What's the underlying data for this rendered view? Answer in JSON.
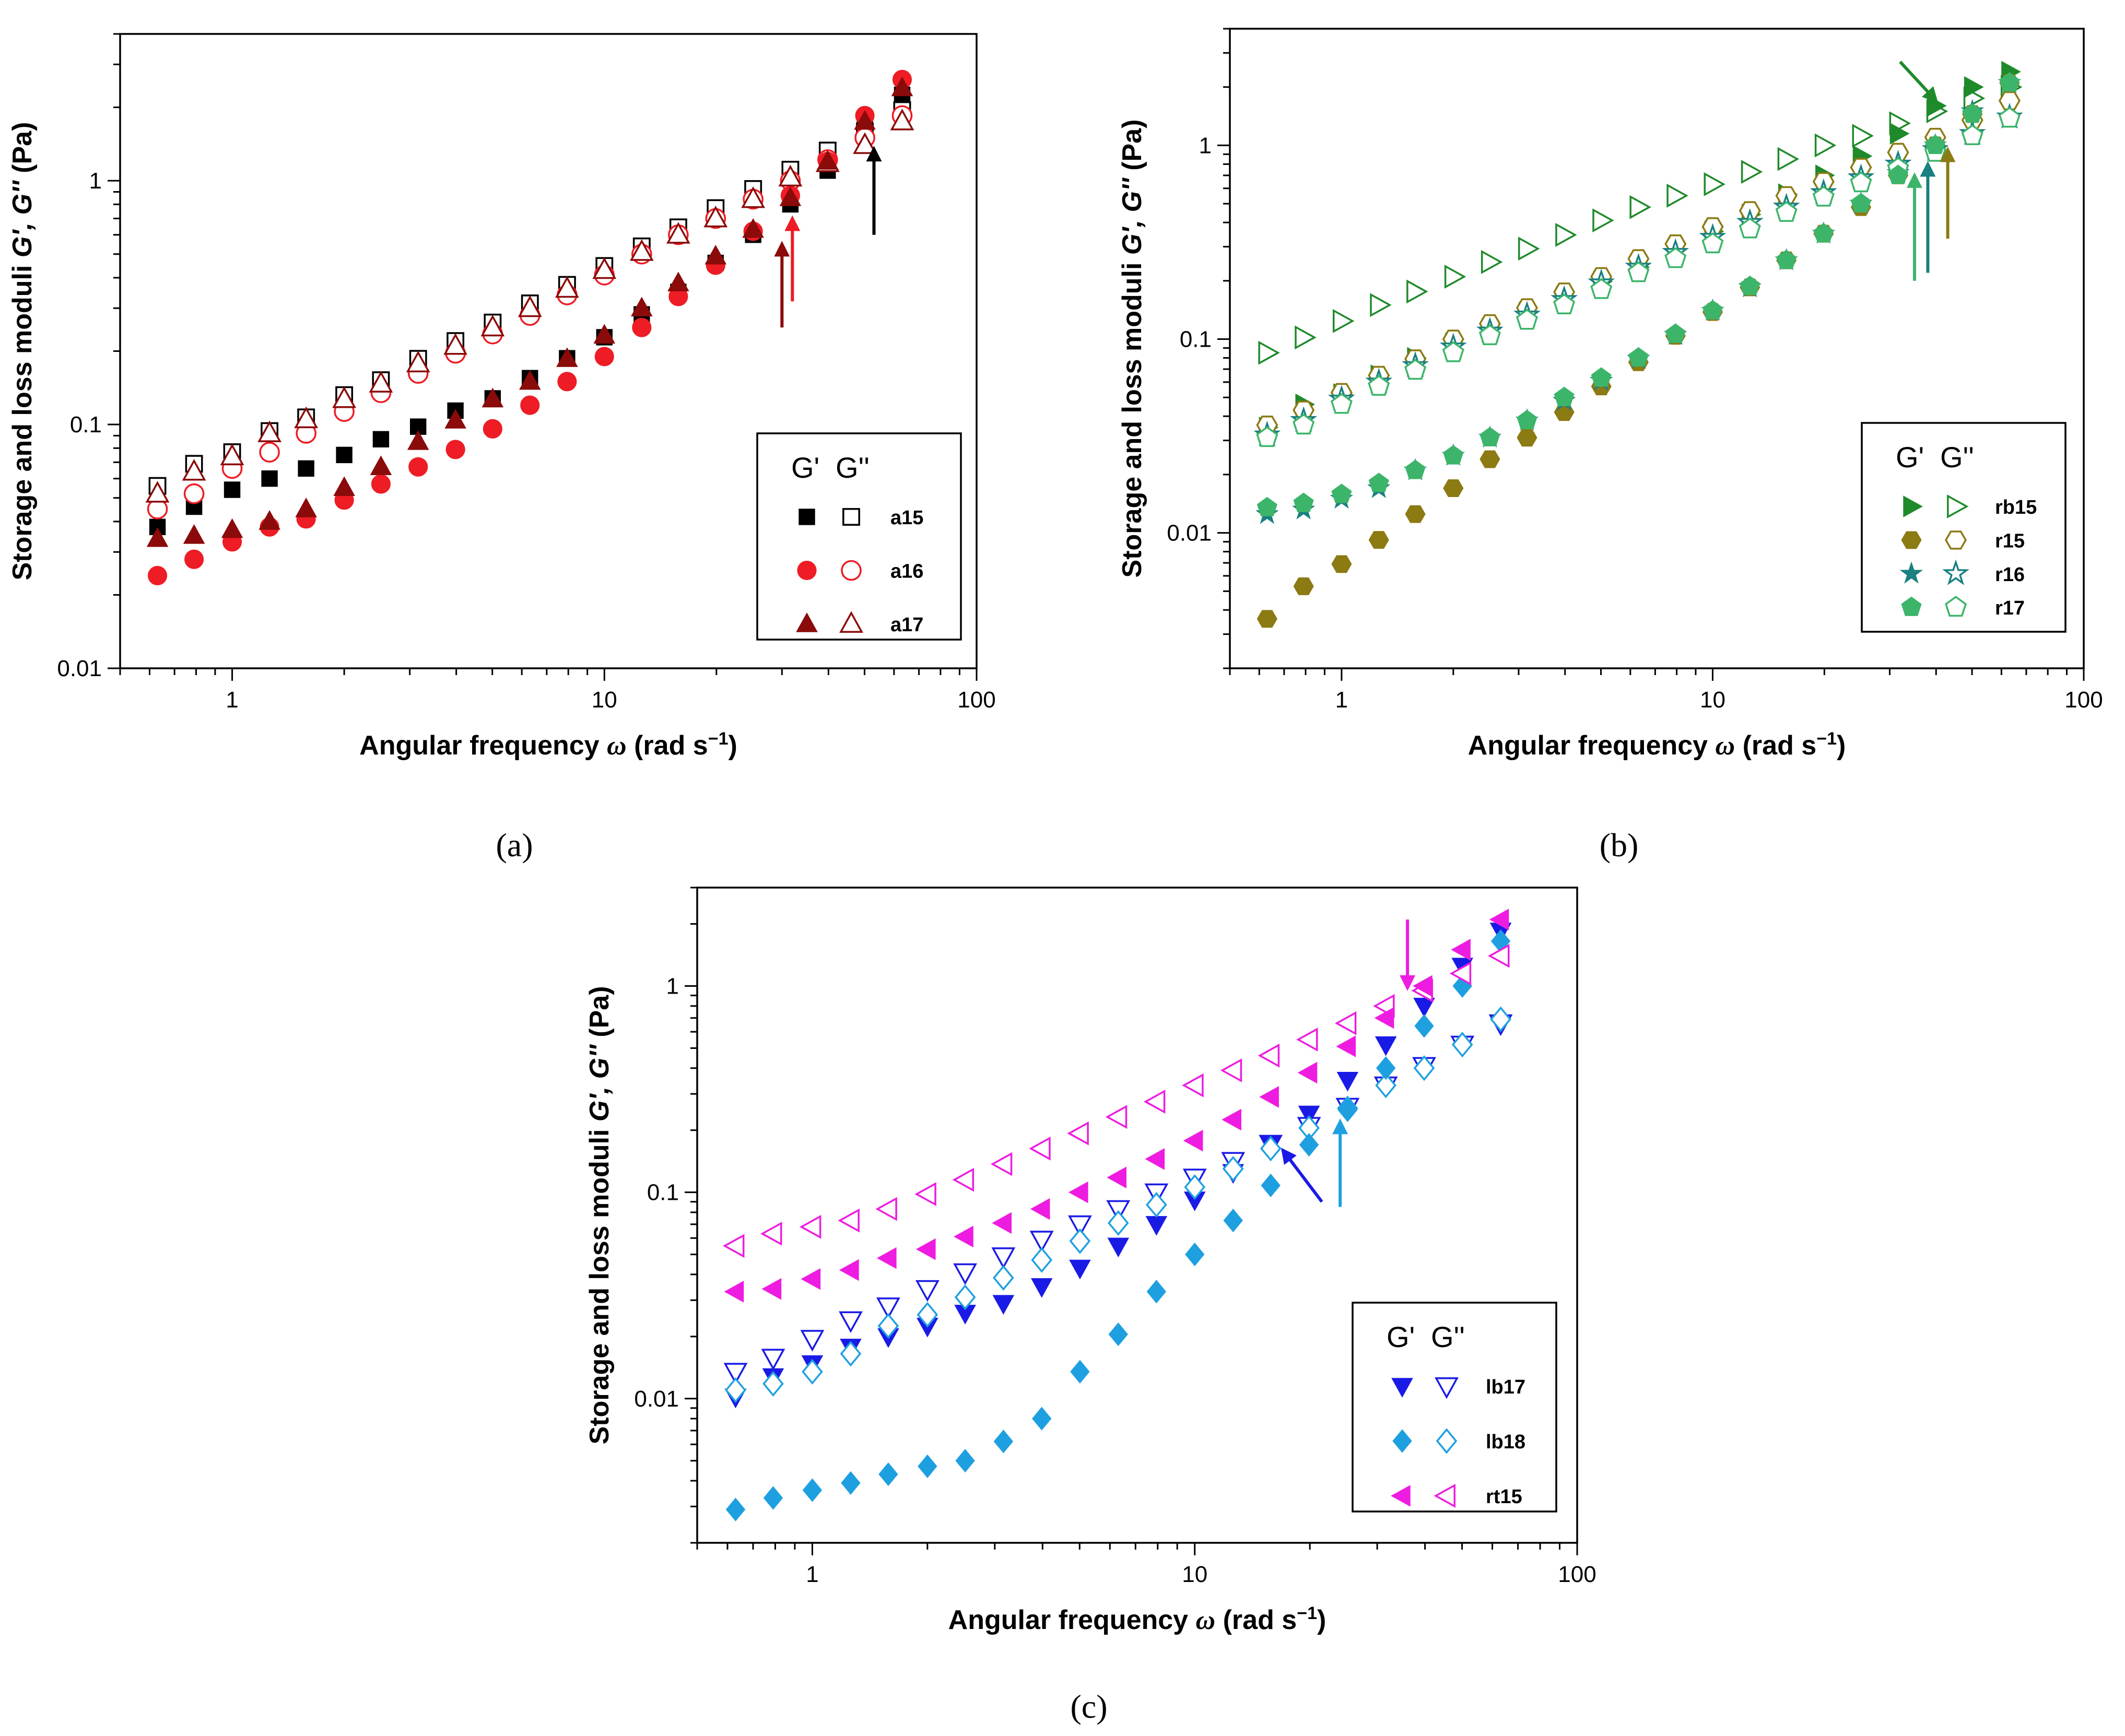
{
  "chart_data": [
    {
      "type": "scatter",
      "panel_label": "(a)",
      "xscale": "log",
      "yscale": "log",
      "xlim": [
        0.5,
        100
      ],
      "ylim": [
        0.01,
        4
      ],
      "xticks": [
        {
          "v": 1,
          "label": "1"
        },
        {
          "v": 10,
          "label": "10"
        },
        {
          "v": 100,
          "label": "100"
        }
      ],
      "yticks": [
        {
          "v": 0.01,
          "label": "0.01"
        },
        {
          "v": 0.1,
          "label": "0.1"
        },
        {
          "v": 1,
          "label": "1"
        }
      ],
      "xlabel_main": "Angular frequency ",
      "xlabel_sym": "ω",
      "xlabel_unit": " (rad s",
      "xlabel_sup": "−1",
      "xlabel_close": ")",
      "ylabel_main": "Storage and loss moduli ",
      "ylabel_sym": "G', G''",
      "ylabel_unit": " (Pa)",
      "legend_header_g1": "G'",
      "legend_header_g2": "G''",
      "x": [
        0.63,
        0.79,
        1.0,
        1.26,
        1.58,
        2.0,
        2.51,
        3.16,
        3.98,
        5.01,
        6.31,
        7.94,
        10.0,
        12.6,
        15.8,
        19.9,
        25.1,
        31.6,
        39.8,
        50.1,
        63.1
      ],
      "series": [
        {
          "name": "a15",
          "marker": "square",
          "color": "#000000",
          "hollow_values": [
            0.056,
            0.069,
            0.077,
            0.094,
            0.107,
            0.132,
            0.152,
            0.186,
            0.22,
            0.262,
            0.314,
            0.374,
            0.447,
            0.538,
            0.644,
            0.772,
            0.925,
            1.11,
            1.33,
            1.59,
            1.95
          ],
          "filled_values": [
            0.038,
            0.046,
            0.054,
            0.06,
            0.066,
            0.075,
            0.087,
            0.098,
            0.114,
            0.128,
            0.155,
            0.187,
            0.228,
            0.283,
            0.35,
            0.46,
            0.6,
            0.8,
            1.1,
            1.75,
            2.25
          ]
        },
        {
          "name": "a16",
          "marker": "circle",
          "color": "#ee1c25",
          "hollow_values": [
            0.045,
            0.052,
            0.066,
            0.077,
            0.092,
            0.113,
            0.135,
            0.162,
            0.196,
            0.235,
            0.28,
            0.34,
            0.41,
            0.5,
            0.6,
            0.7,
            0.84,
            1.0,
            1.22,
            1.5,
            1.85
          ],
          "filled_values": [
            0.024,
            0.028,
            0.033,
            0.038,
            0.041,
            0.049,
            0.057,
            0.067,
            0.079,
            0.096,
            0.12,
            0.15,
            0.19,
            0.25,
            0.335,
            0.45,
            0.62,
            0.87,
            1.2,
            1.85,
            2.6
          ]
        },
        {
          "name": "a17",
          "marker": "triangle",
          "color": "#8b0a0a",
          "hollow_values": [
            0.052,
            0.064,
            0.074,
            0.092,
            0.105,
            0.127,
            0.147,
            0.178,
            0.21,
            0.25,
            0.3,
            0.36,
            0.43,
            0.51,
            0.6,
            0.7,
            0.84,
            1.03,
            1.18,
            1.4,
            1.75
          ],
          "filled_values": [
            0.034,
            0.035,
            0.037,
            0.04,
            0.045,
            0.055,
            0.067,
            0.085,
            0.104,
            0.127,
            0.15,
            0.186,
            0.232,
            0.3,
            0.38,
            0.49,
            0.63,
            0.85,
            1.2,
            1.75,
            2.4
          ]
        }
      ],
      "arrows": [
        {
          "color": "#8b0a0a",
          "x": 30.0,
          "y_from": 0.25,
          "y_to": 0.55
        },
        {
          "color": "#ee1c25",
          "x": 32.0,
          "y_from": 0.32,
          "y_to": 0.7
        },
        {
          "color": "#000000",
          "x": 53.0,
          "y_from": 0.6,
          "y_to": 1.35
        }
      ]
    },
    {
      "type": "scatter",
      "panel_label": "(b)",
      "xscale": "log",
      "yscale": "log",
      "xlim": [
        0.5,
        100
      ],
      "ylim": [
        0.002,
        4
      ],
      "xticks": [
        {
          "v": 1,
          "label": "1"
        },
        {
          "v": 10,
          "label": "10"
        },
        {
          "v": 100,
          "label": "100"
        }
      ],
      "yticks": [
        {
          "v": 0.01,
          "label": "0.01"
        },
        {
          "v": 0.1,
          "label": "0.1"
        },
        {
          "v": 1,
          "label": "1"
        }
      ],
      "xlabel_main": "Angular frequency ",
      "xlabel_sym": "ω",
      "xlabel_unit": " (rad s",
      "xlabel_sup": "−1",
      "xlabel_close": ")",
      "ylabel_main": "Storage and loss moduli ",
      "ylabel_sym": "G', G''",
      "ylabel_unit": " (Pa)",
      "legend_header_g1": "G'",
      "legend_header_g2": "G''",
      "x": [
        0.63,
        0.79,
        1.0,
        1.26,
        1.58,
        2.0,
        2.51,
        3.16,
        3.98,
        5.01,
        6.31,
        7.94,
        10.0,
        12.6,
        15.8,
        19.9,
        25.1,
        31.6,
        39.8,
        50.1,
        63.1
      ],
      "series": [
        {
          "name": "rb15",
          "marker": "tri-right",
          "color": "#1f8a2a",
          "hollow_values": [
            0.085,
            0.102,
            0.124,
            0.15,
            0.176,
            0.21,
            0.25,
            0.293,
            0.345,
            0.41,
            0.48,
            0.55,
            0.63,
            0.73,
            0.85,
            1.0,
            1.12,
            1.3,
            1.5,
            1.75,
            2.0
          ],
          "filled_values": [
            0.035,
            0.046,
            0.052,
            0.065,
            0.08,
            0.095,
            0.113,
            0.137,
            0.165,
            0.198,
            0.235,
            0.29,
            0.36,
            0.44,
            0.56,
            0.7,
            0.88,
            1.15,
            1.6,
            2.0,
            2.4
          ]
        },
        {
          "name": "r15",
          "marker": "hexagon",
          "color": "#8c7a12",
          "hollow_values": [
            0.036,
            0.043,
            0.053,
            0.065,
            0.079,
            0.1,
            0.12,
            0.145,
            0.175,
            0.21,
            0.26,
            0.31,
            0.38,
            0.46,
            0.55,
            0.65,
            0.77,
            0.92,
            1.1,
            1.35,
            1.7
          ],
          "filled_values": [
            0.0036,
            0.0053,
            0.0069,
            0.0092,
            0.0125,
            0.017,
            0.024,
            0.031,
            0.042,
            0.057,
            0.076,
            0.104,
            0.138,
            0.185,
            0.255,
            0.35,
            0.48,
            0.7,
            1.0,
            1.45,
            2.1
          ]
        },
        {
          "name": "r16",
          "marker": "star",
          "color": "#1a8080",
          "hollow_values": [
            0.032,
            0.038,
            0.049,
            0.06,
            0.073,
            0.091,
            0.11,
            0.133,
            0.16,
            0.195,
            0.235,
            0.28,
            0.335,
            0.4,
            0.48,
            0.57,
            0.68,
            0.8,
            0.95,
            1.15,
            1.4
          ],
          "filled_values": [
            0.0125,
            0.0132,
            0.015,
            0.017,
            0.021,
            0.025,
            0.031,
            0.038,
            0.048,
            0.061,
            0.079,
            0.105,
            0.14,
            0.185,
            0.255,
            0.35,
            0.5,
            0.72,
            1.0,
            1.5,
            2.1
          ]
        },
        {
          "name": "r17",
          "marker": "pentagon",
          "color": "#3cb56a",
          "hollow_values": [
            0.031,
            0.036,
            0.046,
            0.057,
            0.069,
            0.085,
            0.104,
            0.125,
            0.15,
            0.18,
            0.22,
            0.26,
            0.31,
            0.37,
            0.45,
            0.54,
            0.64,
            0.76,
            0.92,
            1.12,
            1.38
          ],
          "filled_values": [
            0.0135,
            0.0142,
            0.0158,
            0.018,
            0.021,
            0.025,
            0.031,
            0.038,
            0.05,
            0.063,
            0.08,
            0.106,
            0.14,
            0.187,
            0.255,
            0.35,
            0.5,
            0.7,
            1.0,
            1.45,
            2.1
          ]
        }
      ],
      "arrows": [
        {
          "color": "#1f8a2a",
          "x": 40.0,
          "y_from": 2.7,
          "y_to": 1.7,
          "x_from": 32.0
        },
        {
          "color": "#3cb56a",
          "x": 35.0,
          "y_from": 0.2,
          "y_to": 0.7
        },
        {
          "color": "#1a8080",
          "x": 38.0,
          "y_from": 0.22,
          "y_to": 0.8
        },
        {
          "color": "#8c7a12",
          "x": 43.0,
          "y_from": 0.33,
          "y_to": 0.95
        }
      ]
    },
    {
      "type": "scatter",
      "panel_label": "(c)",
      "xscale": "log",
      "yscale": "log",
      "xlim": [
        0.5,
        100
      ],
      "ylim": [
        0.002,
        3
      ],
      "xticks": [
        {
          "v": 1,
          "label": "1"
        },
        {
          "v": 10,
          "label": "10"
        },
        {
          "v": 100,
          "label": "100"
        }
      ],
      "yticks": [
        {
          "v": 0.01,
          "label": "0.01"
        },
        {
          "v": 0.1,
          "label": "0.1"
        },
        {
          "v": 1,
          "label": "1"
        }
      ],
      "xlabel_main": "Angular frequency ",
      "xlabel_sym": "ω",
      "xlabel_unit": " (rad s",
      "xlabel_sup": "−1",
      "xlabel_close": ")",
      "ylabel_main": "Storage and loss moduli ",
      "ylabel_sym": "G', G''",
      "ylabel_unit": " (Pa)",
      "legend_header_g1": "G'",
      "legend_header_g2": "G''",
      "x": [
        0.63,
        0.79,
        1.0,
        1.26,
        1.58,
        2.0,
        2.51,
        3.16,
        3.98,
        5.01,
        6.31,
        7.94,
        10.0,
        12.6,
        15.8,
        19.9,
        25.1,
        31.6,
        39.8,
        50.1,
        63.1
      ],
      "series": [
        {
          "name": "lb17",
          "marker": "tri-down",
          "color": "#1a1ae6",
          "hollow_values": [
            0.0135,
            0.0158,
            0.0195,
            0.024,
            0.028,
            0.034,
            0.041,
            0.049,
            0.059,
            0.07,
            0.083,
            0.1,
            0.118,
            0.142,
            0.172,
            0.21,
            0.26,
            0.33,
            0.41,
            0.52,
            0.66
          ],
          "filled_values": [
            0.0102,
            0.0128,
            0.0148,
            0.0178,
            0.02,
            0.0225,
            0.026,
            0.029,
            0.035,
            0.043,
            0.055,
            0.07,
            0.092,
            0.125,
            0.17,
            0.24,
            0.35,
            0.52,
            0.8,
            1.25,
            1.85
          ]
        },
        {
          "name": "lb18",
          "marker": "diamond",
          "color": "#1ea0e0",
          "hollow_values": [
            0.011,
            0.0118,
            0.0135,
            0.0165,
            0.0225,
            0.0255,
            0.031,
            0.0385,
            0.047,
            0.058,
            0.071,
            0.087,
            0.106,
            0.13,
            0.163,
            0.205,
            0.255,
            0.33,
            0.4,
            0.52,
            0.69
          ],
          "filled_values": [
            0.0029,
            0.0033,
            0.0036,
            0.0039,
            0.0043,
            0.0047,
            0.005,
            0.0062,
            0.008,
            0.0135,
            0.0205,
            0.033,
            0.05,
            0.073,
            0.108,
            0.17,
            0.25,
            0.4,
            0.64,
            1.0,
            1.65
          ]
        },
        {
          "name": "rt15",
          "marker": "tri-left",
          "color": "#ee1ce0",
          "hollow_values": [
            0.055,
            0.063,
            0.068,
            0.073,
            0.083,
            0.098,
            0.115,
            0.137,
            0.163,
            0.193,
            0.232,
            0.275,
            0.33,
            0.39,
            0.46,
            0.55,
            0.66,
            0.8,
            0.95,
            1.15,
            1.4
          ],
          "filled_values": [
            0.033,
            0.034,
            0.038,
            0.042,
            0.048,
            0.053,
            0.061,
            0.071,
            0.083,
            0.1,
            0.118,
            0.145,
            0.178,
            0.225,
            0.29,
            0.38,
            0.51,
            0.7,
            1.0,
            1.5,
            2.1
          ]
        }
      ],
      "arrows": [
        {
          "color": "#1a1ae6",
          "x": 17.0,
          "y_from": 0.09,
          "y_to": 0.16,
          "x_from": 21.5
        },
        {
          "color": "#1ea0e0",
          "x": 24.0,
          "y_from": 0.085,
          "y_to": 0.22
        },
        {
          "color": "#ee1ce0",
          "x": 36.0,
          "y_from": 2.1,
          "y_to": 0.98
        }
      ]
    }
  ]
}
